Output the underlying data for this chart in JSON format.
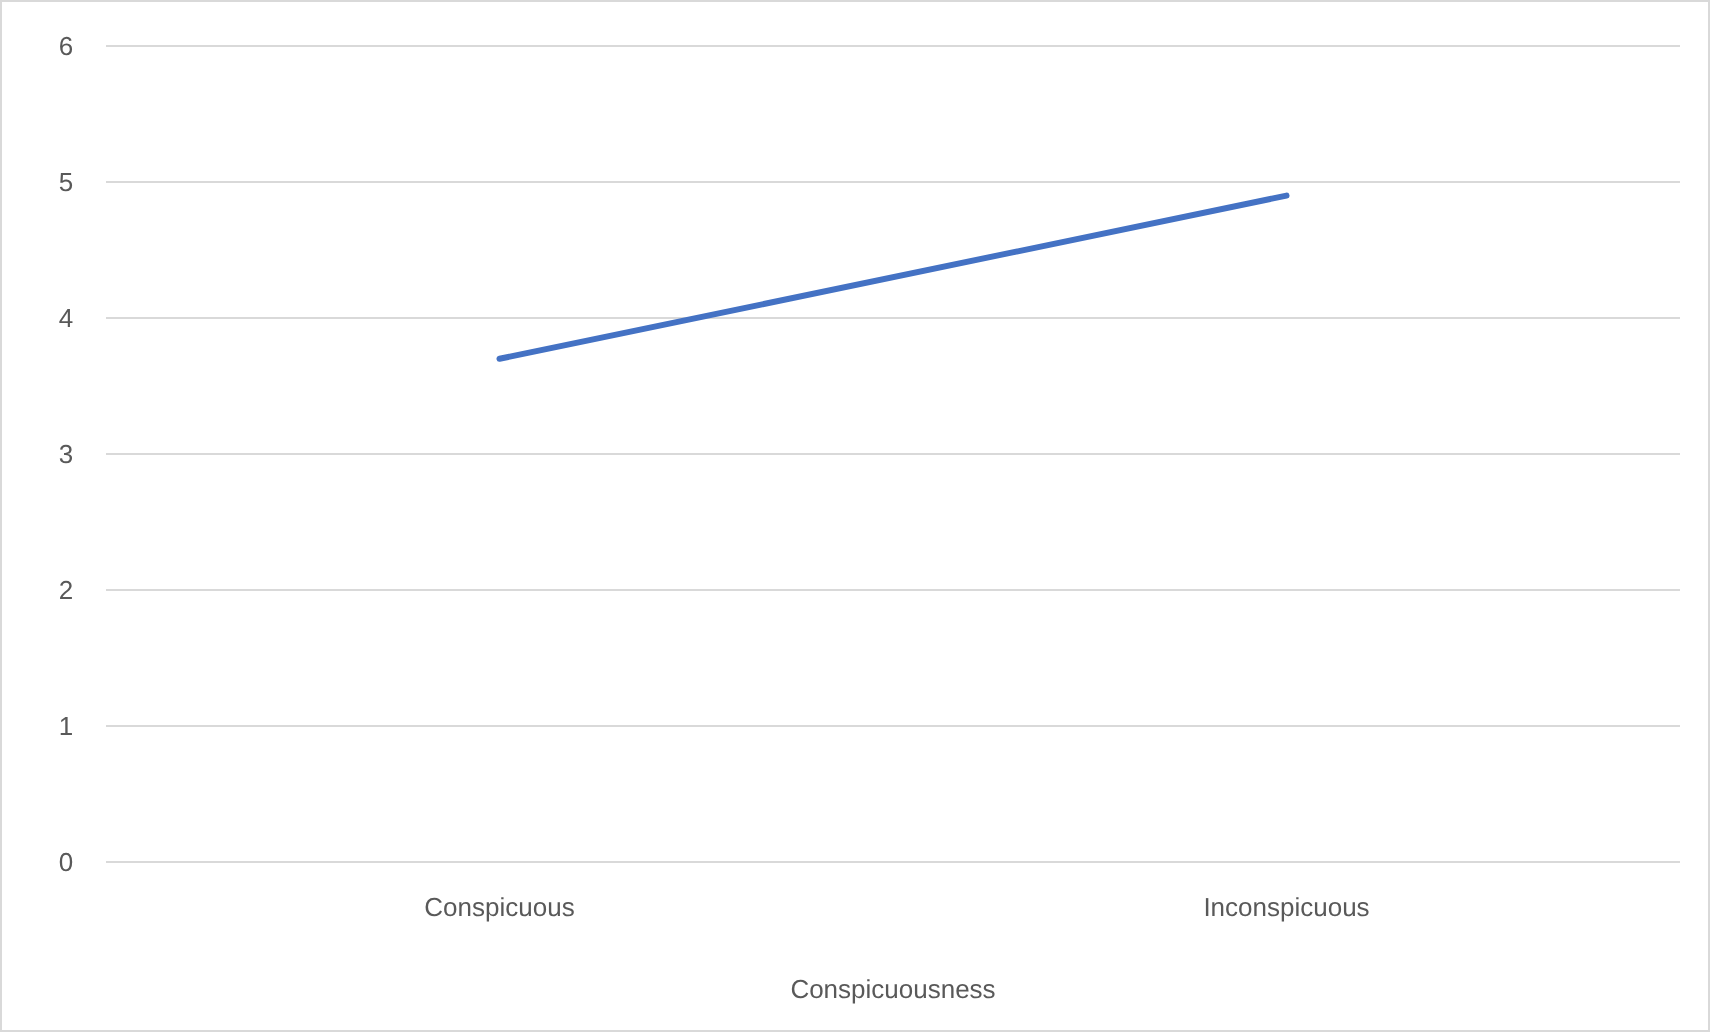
{
  "chart_data": {
    "type": "line",
    "xlabel": "Conspicuousness",
    "categories": [
      "Conspicuous",
      "Inconspicuous"
    ],
    "series": [
      {
        "color": "#4472c4",
        "values": [
          3.7,
          4.9
        ]
      }
    ],
    "ylim": [
      0,
      6
    ],
    "yticks": [
      0,
      1,
      2,
      3,
      4,
      5,
      6
    ],
    "grid": "y",
    "marker": "none"
  }
}
